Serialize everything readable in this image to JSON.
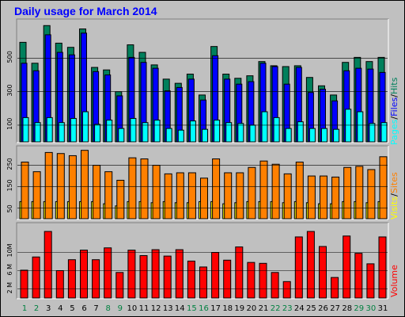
{
  "title": "Daily usage for March 2014",
  "colors": {
    "hits": "#00805c",
    "files": "#0000ff",
    "pages": "#00ffff",
    "visits": "#ffff00",
    "sites": "#ff8000",
    "kbytes": "#ff0000",
    "weekday_label": "#008040",
    "weekend_label": "#000000"
  },
  "legend": {
    "pages": "Pages",
    "files": "Files",
    "hits": "Hits",
    "visits": "Visits",
    "sites": "Sites",
    "volume": "Volume",
    "sep": "/"
  },
  "chart_data": [
    {
      "type": "bar",
      "title": "Daily usage for March 2014",
      "categories": [
        "1",
        "2",
        "3",
        "4",
        "5",
        "6",
        "7",
        "8",
        "9",
        "10",
        "11",
        "12",
        "13",
        "14",
        "15",
        "16",
        "17",
        "18",
        "19",
        "20",
        "21",
        "22",
        "23",
        "24",
        "25",
        "26",
        "27",
        "28",
        "29",
        "30",
        "31"
      ],
      "weekend_days": [
        1,
        2,
        8,
        9,
        15,
        16,
        22,
        23,
        29,
        30
      ],
      "yticks": [
        100,
        300,
        500
      ],
      "ylim": [
        0,
        720
      ],
      "series": [
        {
          "name": "Hits",
          "values": [
            595,
            470,
            695,
            590,
            565,
            675,
            445,
            430,
            300,
            580,
            535,
            460,
            375,
            350,
            405,
            280,
            570,
            405,
            380,
            395,
            480,
            455,
            450,
            455,
            385,
            335,
            280,
            475,
            505,
            480,
            505
          ]
        },
        {
          "name": "Files",
          "values": [
            470,
            425,
            640,
            535,
            520,
            650,
            420,
            400,
            275,
            505,
            475,
            440,
            305,
            325,
            375,
            250,
            515,
            375,
            345,
            360,
            470,
            450,
            345,
            445,
            295,
            315,
            245,
            425,
            440,
            435,
            415
          ]
        },
        {
          "name": "Pages",
          "values": [
            145,
            115,
            145,
            115,
            140,
            180,
            105,
            130,
            80,
            140,
            115,
            130,
            80,
            70,
            125,
            75,
            130,
            115,
            110,
            100,
            180,
            145,
            80,
            120,
            80,
            80,
            75,
            195,
            180,
            110,
            115
          ]
        }
      ]
    },
    {
      "type": "bar",
      "categories": [
        "1",
        "2",
        "3",
        "4",
        "5",
        "6",
        "7",
        "8",
        "9",
        "10",
        "11",
        "12",
        "13",
        "14",
        "15",
        "16",
        "17",
        "18",
        "19",
        "20",
        "21",
        "22",
        "23",
        "24",
        "25",
        "26",
        "27",
        "28",
        "29",
        "30",
        "31"
      ],
      "yticks": [
        50,
        150,
        250
      ],
      "ylim": [
        0,
        330
      ],
      "series": [
        {
          "name": "Visits",
          "values": [
            80,
            80,
            80,
            80,
            80,
            80,
            80,
            70,
            60,
            80,
            80,
            75,
            80,
            75,
            75,
            80,
            80,
            70,
            75,
            80,
            80,
            80,
            75,
            80,
            75,
            70,
            70,
            80,
            80,
            75,
            80
          ]
        },
        {
          "name": "Sites",
          "values": [
            265,
            220,
            310,
            305,
            295,
            320,
            250,
            220,
            180,
            285,
            280,
            250,
            210,
            215,
            215,
            190,
            280,
            215,
            215,
            240,
            270,
            255,
            210,
            265,
            200,
            200,
            195,
            240,
            245,
            230,
            290
          ]
        }
      ]
    },
    {
      "type": "bar",
      "categories": [
        "1",
        "2",
        "3",
        "4",
        "5",
        "6",
        "7",
        "8",
        "9",
        "10",
        "11",
        "12",
        "13",
        "14",
        "15",
        "16",
        "17",
        "18",
        "19",
        "20",
        "21",
        "22",
        "23",
        "24",
        "25",
        "26",
        "27",
        "28",
        "29",
        "30",
        "31"
      ],
      "yticks": [
        "2 M",
        "6 M",
        "10M"
      ],
      "ytick_values": [
        2,
        6,
        10
      ],
      "ylim": [
        0,
        16
      ],
      "series": [
        {
          "name": "Volume",
          "values": [
            6.1,
            9.0,
            14.6,
            6.0,
            8.4,
            10.5,
            8.4,
            11.0,
            5.6,
            10.5,
            9.3,
            10.6,
            9.2,
            10.6,
            8.1,
            6.8,
            10.0,
            8.3,
            11.2,
            7.8,
            7.6,
            5.6,
            3.6,
            13.4,
            14.6,
            11.3,
            4.5,
            13.6,
            9.8,
            7.5,
            13.4
          ]
        }
      ]
    }
  ]
}
